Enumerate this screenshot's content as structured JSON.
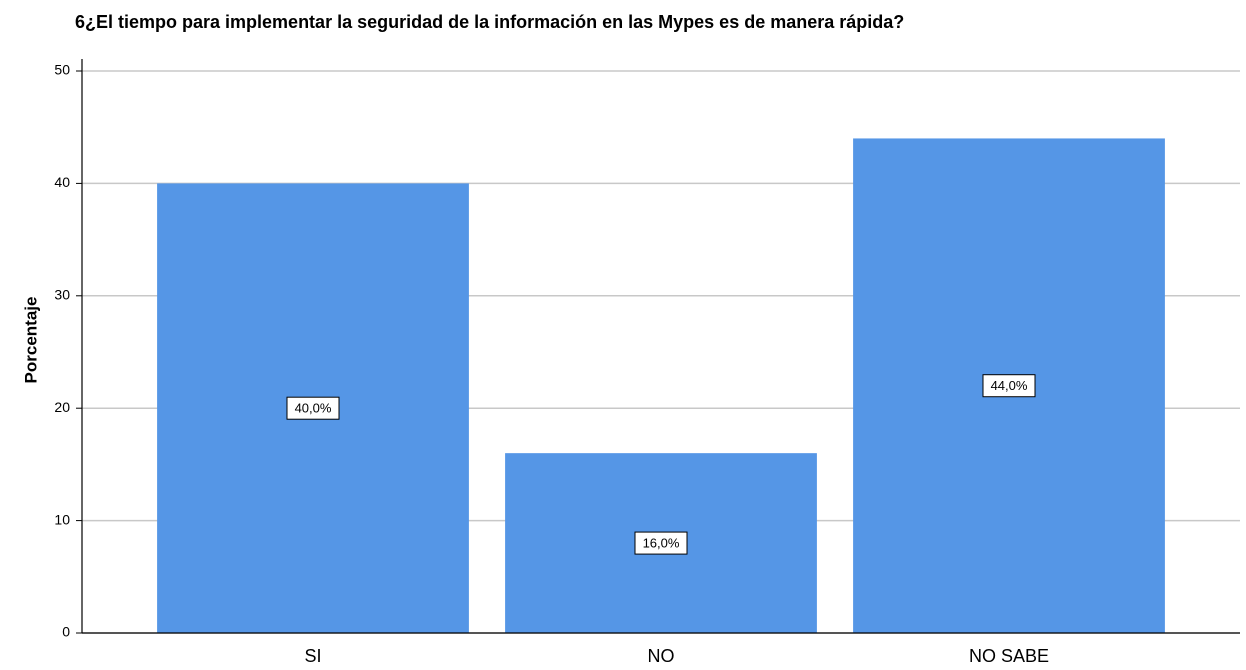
{
  "chart_data": {
    "type": "bar",
    "title": "6¿El tiempo para implementar la seguridad de la información en las Mypes es de manera rápida?",
    "y_label": "Porcentaje",
    "categories": [
      "SI",
      "NO",
      "NO SABE"
    ],
    "values": [
      40,
      16,
      44
    ],
    "value_labels": [
      "40,0%",
      "16,0%",
      "44,0%"
    ],
    "color": "#5596e6",
    "ylim": [
      0,
      50
    ],
    "yticks": [
      0,
      10,
      20,
      30,
      40,
      50
    ],
    "grid": true
  }
}
